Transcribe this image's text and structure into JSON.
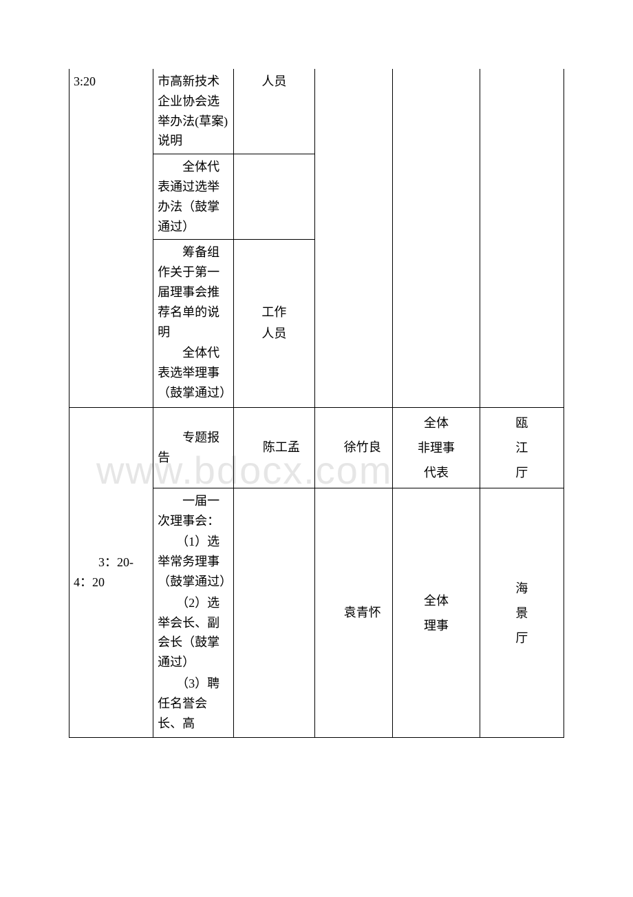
{
  "watermark": "www.bdocx.com",
  "row1": {
    "time": "3:20",
    "col2a": "市高新技术企业协会选举办法(草案)说明",
    "col3": "人员"
  },
  "row2": {
    "col2": "　　全体代表通过选举办法（鼓掌通过）"
  },
  "row3": {
    "col2a": "　　筹备组作关于第一届理事会推荐名单的说明",
    "col2b": "　　全体代表选举理事（鼓掌通过）",
    "col3a": "工作",
    "col3b": "人员"
  },
  "row4": {
    "col2": "　　专题报告",
    "col3": "　　陈工孟",
    "col4": "　　徐竹良",
    "col5a": "全体",
    "col5b": "非理事",
    "col5c": "代表",
    "col6a": "瓯",
    "col6b": "江",
    "col6c": "厅"
  },
  "row5": {
    "time": "　　3：20-4：20",
    "col2a": "　　一届一次理事会：",
    "col2b": "　　（1）选举常务理事（鼓掌通过）",
    "col2c": "　　（2）选举会长、副会长（鼓掌通过）",
    "col2d": "　　（3）聘任名誉会长、高",
    "col4": "　　袁青怀",
    "col5a": "全体",
    "col5b": "理事",
    "col6a": "海",
    "col6b": "景",
    "col6c": "厅"
  }
}
